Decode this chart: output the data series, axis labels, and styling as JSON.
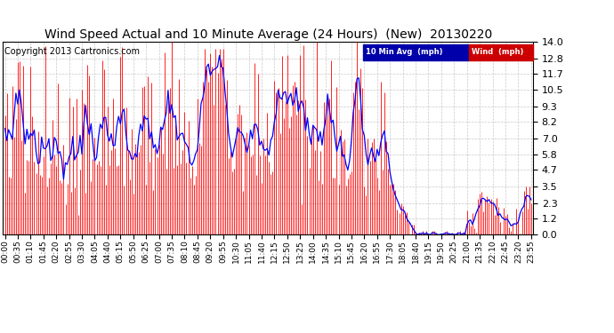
{
  "title": "Wind Speed Actual and 10 Minute Average (24 Hours)  (New)  20130220",
  "copyright": "Copyright 2013 Cartronics.com",
  "legend_blue_label": "10 Min Avg  (mph)",
  "legend_red_label": "Wind  (mph)",
  "yticks": [
    0.0,
    1.2,
    2.3,
    3.5,
    4.7,
    5.8,
    7.0,
    8.2,
    9.3,
    10.5,
    11.7,
    12.8,
    14.0
  ],
  "ymin": 0.0,
  "ymax": 14.0,
  "background_color": "#ffffff",
  "plot_bg_color": "#ffffff",
  "grid_color": "#bbbbbb",
  "title_fontsize": 10,
  "copyright_fontsize": 7,
  "tick_label_fontsize": 6.5,
  "ytick_label_fontsize": 8,
  "red_color": "#ff0000",
  "blue_color": "#0000ff",
  "legend_blue_bg": "#0000aa",
  "legend_red_bg": "#cc0000"
}
